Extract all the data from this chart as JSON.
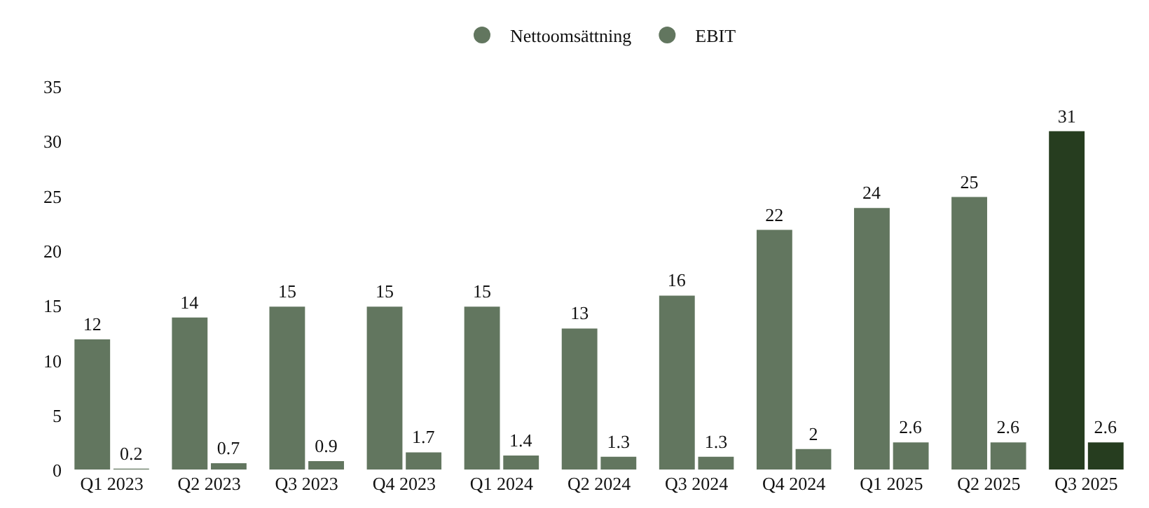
{
  "chart_data": {
    "type": "bar",
    "categories": [
      "Q1 2023",
      "Q2 2023",
      "Q3 2023",
      "Q4 2023",
      "Q1 2024",
      "Q2 2024",
      "Q3 2024",
      "Q4 2024",
      "Q1 2025",
      "Q2 2025",
      "Q3 2025"
    ],
    "series": [
      {
        "name": "Nettoomsättning",
        "color": "#62765f",
        "colors": [
          "#62765f",
          "#62765f",
          "#62765f",
          "#62765f",
          "#62765f",
          "#62765f",
          "#62765f",
          "#62765f",
          "#62765f",
          "#62765f",
          "#263d1f"
        ],
        "values": [
          12,
          14,
          15,
          15,
          15,
          13,
          16,
          22,
          24,
          25,
          31
        ]
      },
      {
        "name": "EBIT",
        "color": "#62765f",
        "colors": [
          "#62765f",
          "#62765f",
          "#62765f",
          "#62765f",
          "#62765f",
          "#62765f",
          "#62765f",
          "#62765f",
          "#62765f",
          "#62765f",
          "#263d1f"
        ],
        "values": [
          0.2,
          0.7,
          0.9,
          1.7,
          1.4,
          1.3,
          1.3,
          2,
          2.6,
          2.6,
          2.6
        ]
      }
    ],
    "ylim": [
      0,
      35
    ],
    "yticks": [
      0,
      5,
      10,
      15,
      20,
      25,
      30,
      35
    ],
    "data_labels": true,
    "legend": "top",
    "marker": "circle"
  }
}
